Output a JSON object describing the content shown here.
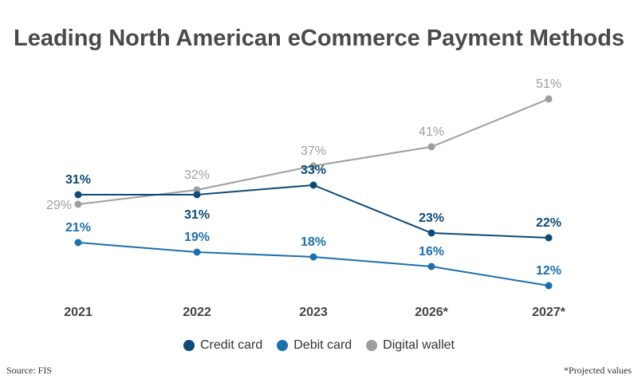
{
  "chart_data": {
    "type": "line",
    "title": "Leading North American eCommerce Payment Methods",
    "categories": [
      "2021",
      "2022",
      "2023",
      "2026*",
      "2027*"
    ],
    "series": [
      {
        "name": "Credit card",
        "color": "#0d4a78",
        "values": [
          31,
          31,
          33,
          23,
          22
        ]
      },
      {
        "name": "Debit card",
        "color": "#1d6fae",
        "values": [
          21,
          19,
          18,
          16,
          12
        ]
      },
      {
        "name": "Digital wallet",
        "color": "#9e9e9e",
        "values": [
          29,
          32,
          37,
          41,
          51
        ]
      }
    ],
    "value_suffix": "%",
    "legend_position": "bottom",
    "grid": false
  },
  "footer": {
    "source": "Source: FIS",
    "note": "*Projected values"
  }
}
